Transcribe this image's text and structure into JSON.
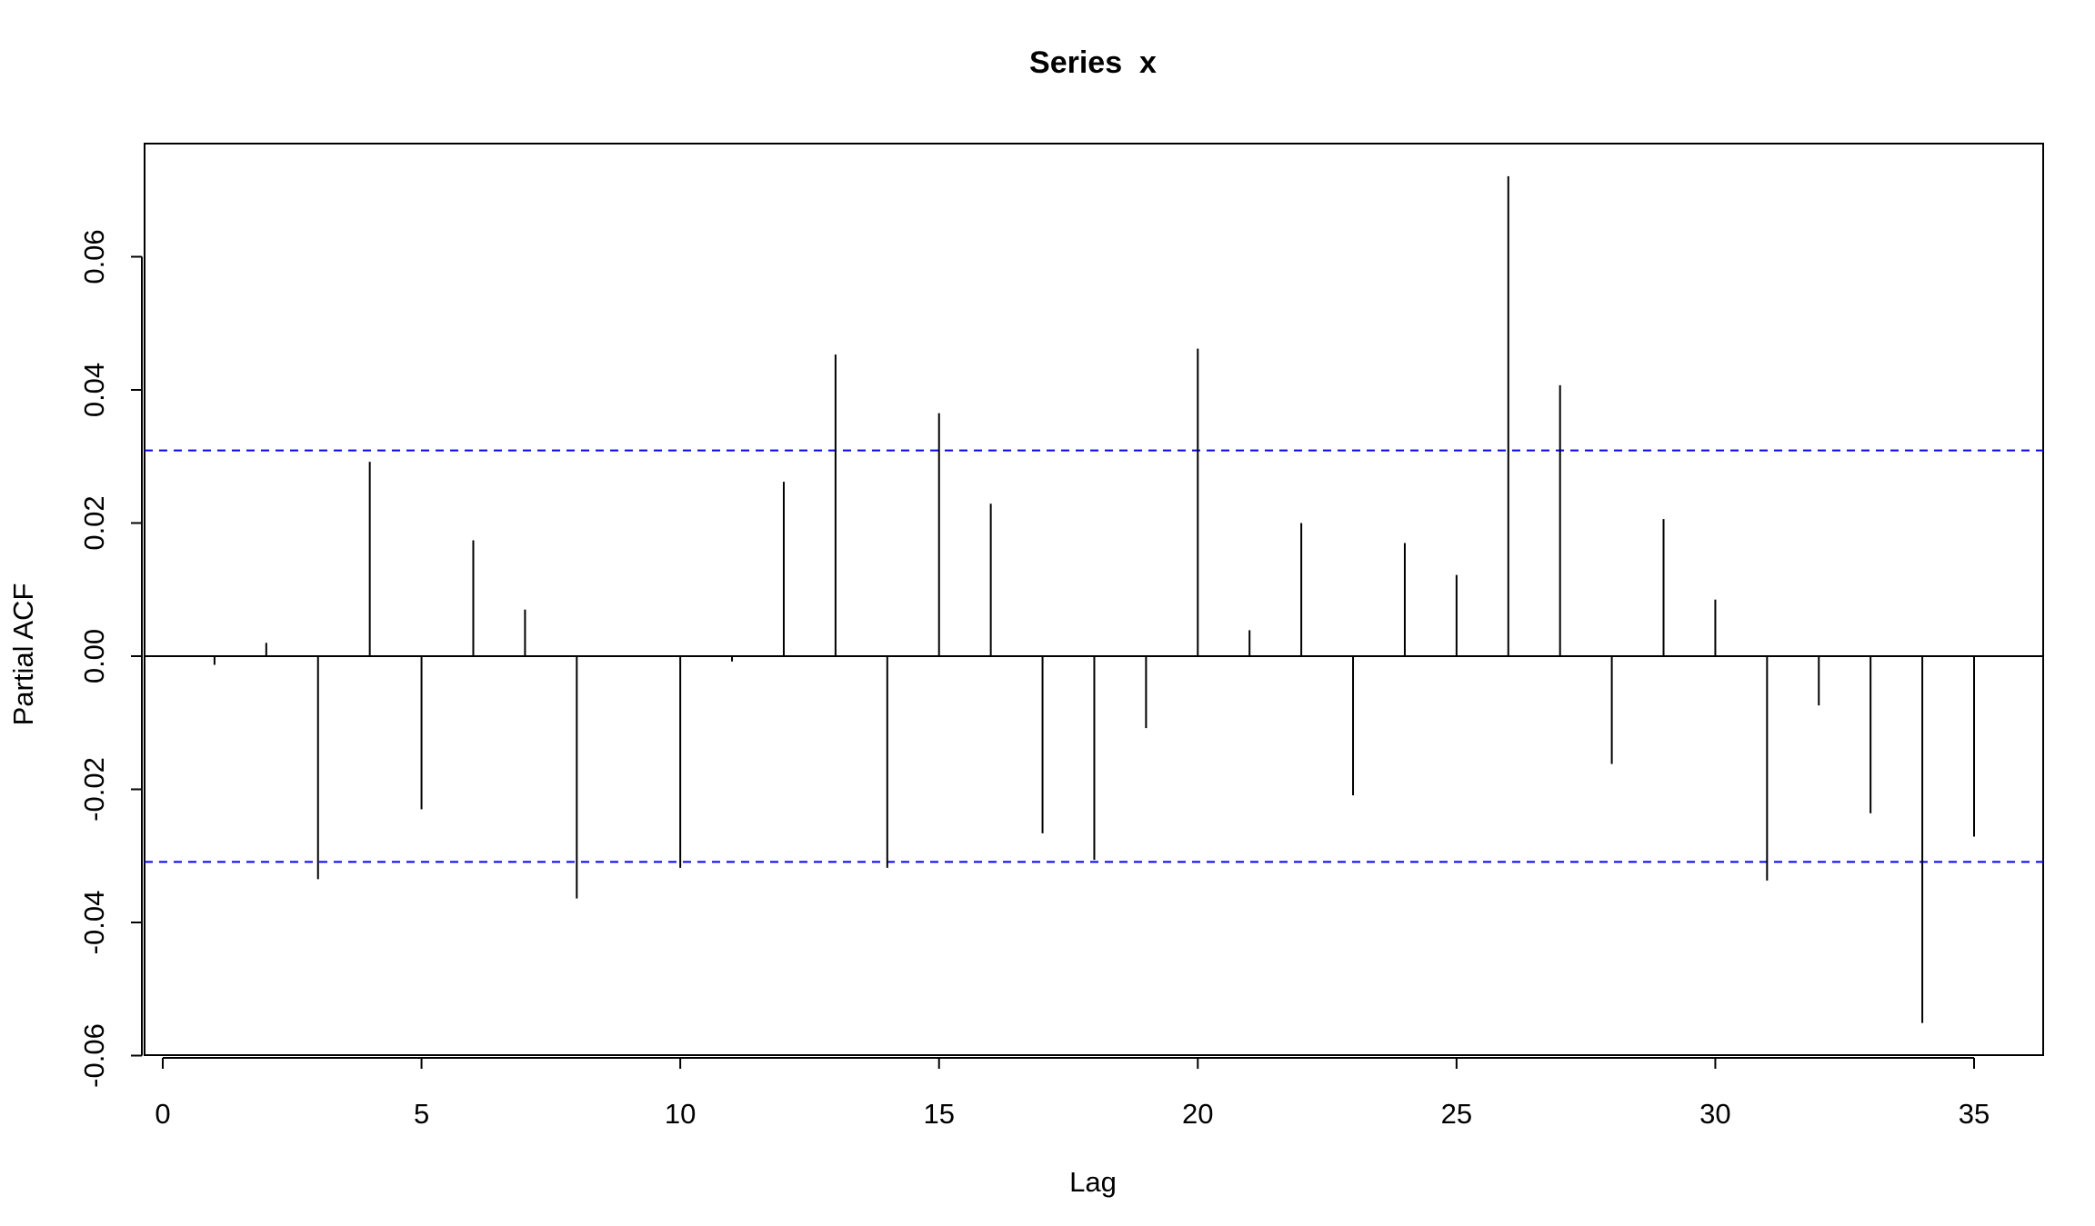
{
  "chart_data": {
    "type": "bar",
    "subtype": "pacf-spikes",
    "title": "Series  x",
    "xlabel": "Lag",
    "ylabel": "Partial ACF",
    "xlim": [
      0,
      36
    ],
    "ylim": [
      -0.06,
      0.072
    ],
    "x_ticks": [
      0,
      5,
      10,
      15,
      20,
      25,
      30,
      35
    ],
    "x_tick_labels": [
      "0",
      "5",
      "10",
      "15",
      "20",
      "25",
      "30",
      "35"
    ],
    "y_ticks": [
      -0.06,
      -0.04,
      -0.02,
      0.0,
      0.02,
      0.04,
      0.06
    ],
    "y_tick_labels": [
      "-0.06",
      "-0.04",
      "-0.02",
      "0.00",
      "0.02",
      "0.04",
      "0.06"
    ],
    "lags": [
      1,
      2,
      3,
      4,
      5,
      6,
      7,
      8,
      9,
      10,
      11,
      12,
      13,
      14,
      15,
      16,
      17,
      18,
      19,
      20,
      21,
      22,
      23,
      24,
      25,
      26,
      27,
      28,
      29,
      30,
      31,
      32,
      33,
      34,
      35
    ],
    "values": [
      -0.0013,
      0.002,
      -0.0335,
      0.0292,
      -0.023,
      0.0174,
      0.007,
      -0.0364,
      0.0,
      -0.0318,
      -0.0008,
      0.0262,
      0.0453,
      -0.0318,
      0.0365,
      0.0229,
      -0.0266,
      -0.0306,
      -0.0108,
      0.0462,
      0.0039,
      0.02,
      -0.0209,
      0.017,
      0.0122,
      0.0721,
      0.0407,
      -0.0162,
      0.0206,
      0.0085,
      -0.0337,
      -0.0074,
      -0.0236,
      -0.0551,
      -0.0271
    ],
    "confidence_bound": 0.0309,
    "grid": false,
    "colors": {
      "spike": "#000000",
      "zero_line": "#000000",
      "confidence_line": "#0000ff",
      "axes": "#000000"
    }
  }
}
